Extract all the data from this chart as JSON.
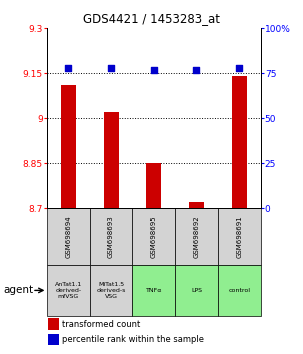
{
  "title": "GDS4421 / 1453283_at",
  "samples": [
    "GSM698694",
    "GSM698693",
    "GSM698695",
    "GSM698692",
    "GSM698691"
  ],
  "agents": [
    "AnTat1.1\nderived-\nmfVSG",
    "MiTat1.5\nderived-s\nVSG",
    "TNFα",
    "LPS",
    "control"
  ],
  "agent_colors": [
    "#d3d3d3",
    "#d3d3d3",
    "#90ee90",
    "#90ee90",
    "#90ee90"
  ],
  "transformed_counts": [
    9.11,
    9.02,
    8.85,
    8.72,
    9.14
  ],
  "percentile_ranks": [
    78,
    78,
    77,
    77,
    78
  ],
  "ylim_left": [
    8.7,
    9.3
  ],
  "ylim_right": [
    0,
    100
  ],
  "yticks_left": [
    8.7,
    8.85,
    9.0,
    9.15,
    9.3
  ],
  "ytick_labels_left": [
    "8.7",
    "8.85",
    "9",
    "9.15",
    "9.3"
  ],
  "yticks_right": [
    0,
    25,
    50,
    75,
    100
  ],
  "ytick_labels_right": [
    "0",
    "25",
    "50",
    "75",
    "100%"
  ],
  "bar_color": "#cc0000",
  "dot_color": "#0000cc",
  "bar_width": 0.35,
  "legend_bar_label": "transformed count",
  "legend_dot_label": "percentile rank within the sample",
  "agent_label": "agent"
}
